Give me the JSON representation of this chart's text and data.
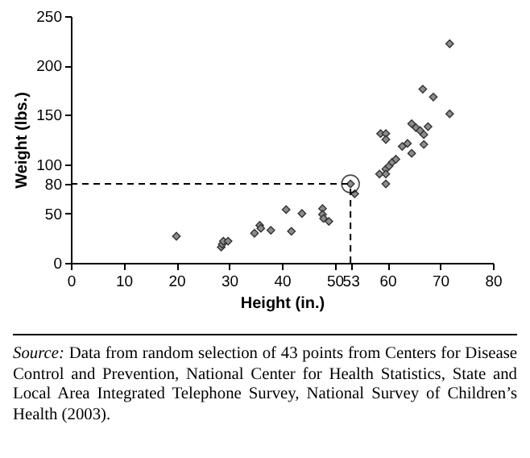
{
  "chart_data": {
    "type": "scatter",
    "xlabel": "Height (in.)",
    "ylabel": "Weight (lbs.)",
    "x": [
      20,
      28.5,
      28.7,
      28.9,
      29.8,
      34.8,
      35.8,
      36.0,
      37.9,
      41.5,
      41.8,
      40.8,
      43.8,
      47.7,
      47.7,
      47.9,
      48.9,
      53,
      53.8,
      58.5,
      59.1,
      59.7,
      60.3,
      60.9,
      61.6,
      59.7,
      59.7,
      58.7,
      59.7,
      59.7,
      62.8,
      63.8,
      64.6,
      64.6,
      65.4,
      66.2,
      66.9,
      66.9,
      67.7,
      66.7,
      68.7,
      71.8,
      71.8
    ],
    "values": [
      27,
      16,
      19,
      22,
      22,
      30,
      38,
      35,
      33,
      null,
      32,
      54,
      50,
      55,
      49,
      45,
      42,
      80,
      70,
      90,
      null,
      95,
      98,
      102,
      105,
      90,
      80,
      131,
      131,
      125,
      118,
      121,
      111,
      141,
      137,
      134,
      130,
      120,
      138,
      176,
      168,
      151,
      222
    ],
    "color": "#8c8c8c",
    "marker": "diamond",
    "xlim": [
      0,
      80
    ],
    "xticks": [
      0,
      10,
      20,
      30,
      40,
      50,
      53,
      60,
      70,
      80
    ],
    "ylim": [
      0,
      250
    ],
    "yticks": [
      0,
      50,
      80,
      100,
      150,
      200,
      250
    ],
    "grid": false,
    "ref_lines": [
      {
        "axis": "x",
        "value": 53,
        "line_style": "dashed"
      },
      {
        "axis": "y",
        "value": 80,
        "line_style": "dashed"
      }
    ],
    "annotations": [
      "Source: Data from random selection of 43 points from Centers for Disease Control and Prevention, National Center for Health Statistics, State and Local Area Integrated Telephone Survey, National Survey of Children’s Health (2003)."
    ]
  }
}
